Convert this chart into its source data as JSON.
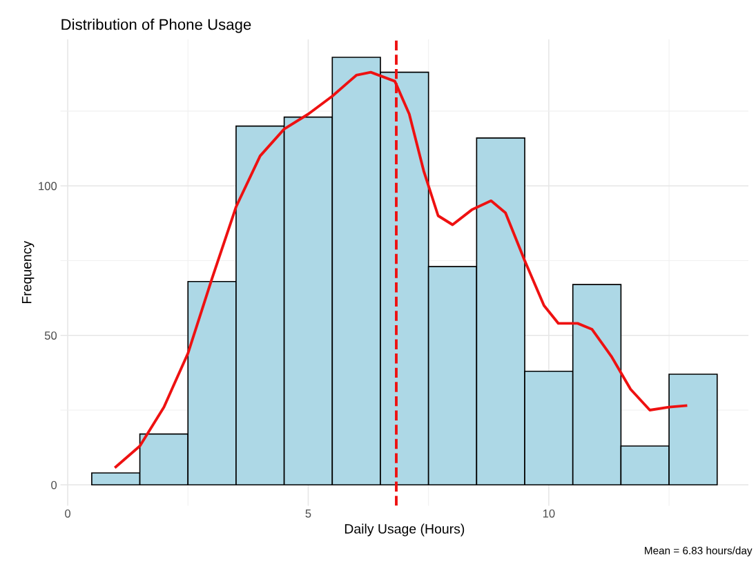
{
  "chart_data": {
    "type": "histogram",
    "title": "Distribution of Phone Usage",
    "xlabel": "Daily Usage (Hours)",
    "ylabel": "Frequency",
    "series": [
      {
        "color": "#add8e6",
        "bins": [
          0.5,
          1.5,
          2.5,
          3.5,
          4.5,
          5.5,
          6.5,
          7.5,
          8.5,
          9.5,
          10.5,
          11.5,
          12.5,
          13.5
        ],
        "values": [
          4,
          17,
          68,
          120,
          123,
          143,
          138,
          73,
          116,
          38,
          67,
          13,
          37
        ]
      },
      {
        "type": "line",
        "color": "#ee1111",
        "x": [
          1.0,
          1.5,
          2.0,
          2.5,
          3.0,
          3.5,
          4.0,
          4.5,
          5.0,
          5.5,
          6.0,
          6.3,
          6.8,
          7.1,
          7.4,
          7.7,
          8.0,
          8.4,
          8.8,
          9.1,
          9.5,
          9.9,
          10.2,
          10.6,
          10.9,
          11.3,
          11.7,
          12.1,
          12.5,
          12.85
        ],
        "values": [
          6,
          13,
          26,
          44,
          69,
          93,
          110,
          119,
          124,
          130,
          137,
          138,
          135,
          124,
          105,
          90,
          87,
          92,
          95,
          91,
          75,
          60,
          54,
          54,
          52,
          43,
          32,
          25,
          26,
          26.5
        ]
      }
    ],
    "ref_lines": [
      {
        "axis": "x",
        "value": 6.83,
        "color": "#ee1111",
        "line_style": "dashed"
      }
    ],
    "annotations": [
      "Mean = 6.83 hours/day"
    ],
    "xlim": [
      -0.15,
      14.15
    ],
    "xticks": [
      0,
      5,
      10
    ],
    "ylim": [
      -7,
      149
    ],
    "yticks": [
      0,
      50,
      100
    ],
    "grid": true,
    "legend": false
  }
}
